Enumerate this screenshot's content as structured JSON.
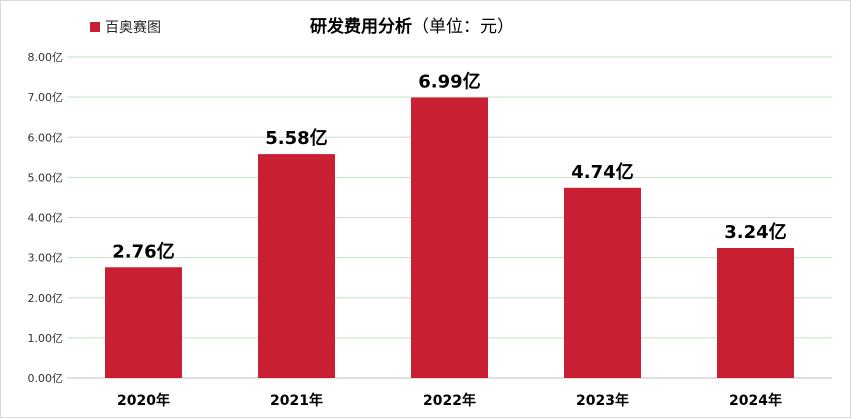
{
  "chart_data": {
    "type": "bar",
    "title": "研发费用分析",
    "subtitle": "（单位：元）",
    "categories": [
      "2020年",
      "2021年",
      "2022年",
      "2023年",
      "2024年"
    ],
    "series": [
      {
        "name": "百奥赛图",
        "values": [
          2.76,
          5.58,
          6.99,
          4.74,
          3.24
        ]
      }
    ],
    "data_labels": [
      "2.76亿",
      "5.58亿",
      "6.99亿",
      "4.74亿",
      "3.24亿"
    ],
    "ylim": [
      0,
      8
    ],
    "yticks": [
      "0.00亿",
      "1.00亿",
      "2.00亿",
      "3.00亿",
      "4.00亿",
      "5.00亿",
      "6.00亿",
      "7.00亿",
      "8.00亿"
    ],
    "grid": true,
    "legend_position": "top-left",
    "colors": {
      "bar": "#c91f32",
      "grid": "#c6e0c6",
      "axis": "#bfbfbf"
    }
  }
}
